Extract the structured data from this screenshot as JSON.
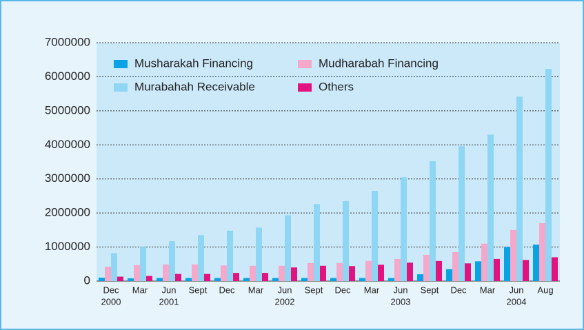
{
  "chart_data": {
    "type": "bar",
    "categories": [
      "Dec",
      "Mar",
      "Jun",
      "Sept",
      "Dec",
      "Mar",
      "Jun",
      "Sept",
      "Dec",
      "Mar",
      "Jun",
      "Sept",
      "Dec",
      "Mar",
      "Jun",
      "Aug"
    ],
    "year_labels": [
      "2000",
      null,
      "2001",
      null,
      null,
      null,
      "2002",
      null,
      null,
      null,
      "2003",
      null,
      null,
      null,
      "2004",
      null
    ],
    "series": [
      {
        "name": "Musharakah Financing",
        "color": "#09a3e3",
        "values": [
          100000,
          80000,
          90000,
          90000,
          90000,
          90000,
          90000,
          90000,
          90000,
          90000,
          90000,
          200000,
          350000,
          580000,
          1000000,
          1070000
        ]
      },
      {
        "name": "Mudharabah Financing",
        "color": "#f5a8ca",
        "values": [
          420000,
          470000,
          490000,
          490000,
          460000,
          450000,
          450000,
          530000,
          530000,
          590000,
          650000,
          770000,
          850000,
          1100000,
          1500000,
          1700000
        ]
      },
      {
        "name": "Murabahah Receivable",
        "color": "#8fd6f5",
        "values": [
          820000,
          1000000,
          1170000,
          1350000,
          1480000,
          1570000,
          1930000,
          2260000,
          2350000,
          2650000,
          3050000,
          3520000,
          3960000,
          4300000,
          5420000,
          6230000
        ]
      },
      {
        "name": "Others",
        "color": "#e2137f",
        "values": [
          130000,
          150000,
          210000,
          210000,
          240000,
          240000,
          400000,
          450000,
          440000,
          480000,
          540000,
          590000,
          520000,
          650000,
          620000,
          700000
        ]
      }
    ],
    "ylim": [
      0,
      7000000
    ],
    "yticks": [
      0,
      1000000,
      2000000,
      3000000,
      4000000,
      5000000,
      6000000,
      7000000
    ],
    "grid": true,
    "legend": "upper left"
  }
}
